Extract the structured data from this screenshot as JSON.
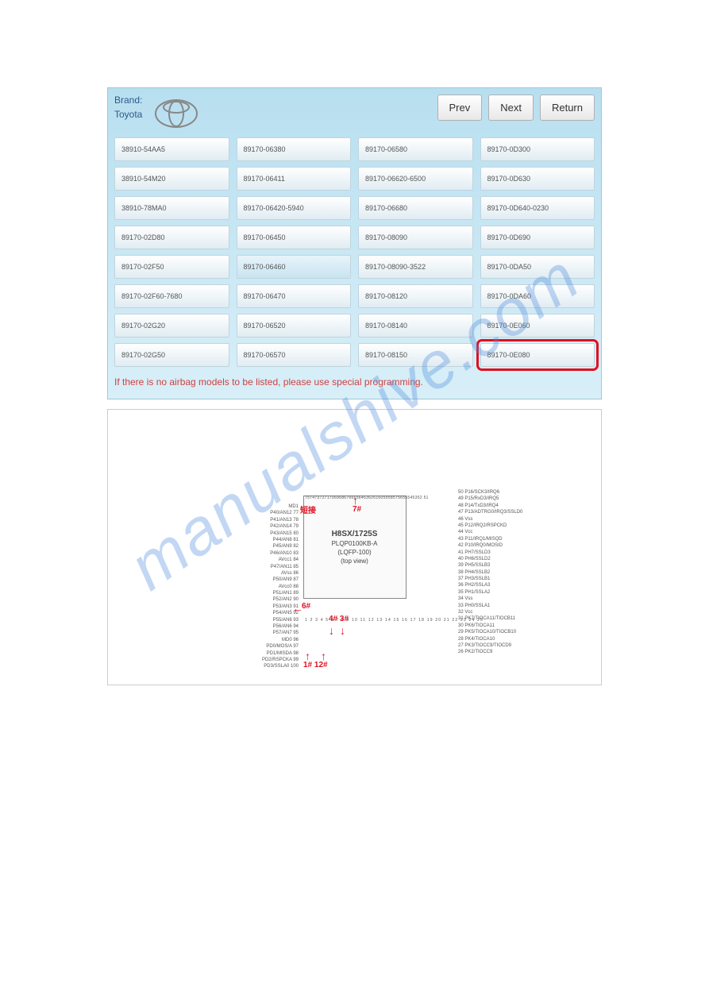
{
  "header": {
    "brand_label": "Brand:",
    "brand_name": "Toyota",
    "prev": "Prev",
    "next": "Next",
    "return": "Return"
  },
  "grid": {
    "cells": [
      "38910-54AA5",
      "89170-06380",
      "89170-06580",
      "89170-0D300",
      "38910-54M20",
      "89170-06411",
      "89170-06620-6500",
      "89170-0D630",
      "38910-78MA0",
      "89170-06420-5940",
      "89170-06680",
      "89170-0D640-0230",
      "89170-02D80",
      "89170-06450",
      "89170-08090",
      "89170-0D690",
      "89170-02F50",
      "89170-06460",
      "89170-08090-3522",
      "89170-0DA50",
      "89170-02F60-7680",
      "89170-06470",
      "89170-08120",
      "89170-0DA60",
      "89170-02G20",
      "89170-06520",
      "89170-08140",
      "89170-0E060",
      "89170-02G50",
      "89170-06570",
      "89170-08150",
      "89170-0E080"
    ],
    "highlighted_index": 17,
    "red_boxed_index": 31
  },
  "footer_note": "If there is no airbag models to be listed, please use special programming.",
  "chip": {
    "title": "H8SX/1725S",
    "subtitle1": "PLQP0100KB-A",
    "subtitle2": "(LQFP-100)",
    "subtitle3": "(top view)",
    "left_pins": [
      "MD1",
      "P40/AN12 77",
      "P41/AN13 78",
      "P42/AN14 79",
      "P43/AN15 80",
      "P44/AN8 81",
      "P45/AN9 82",
      "P46/AN10 83",
      "AVcc1 84",
      "P47/AN11 85",
      "AVss 86",
      "P50/AN9 87",
      "AVcc0 88",
      "P51/AN1 89",
      "P52/AN2 90",
      "P53/AN3 91",
      "P54/AN5 92",
      "P55/AN6 93",
      "P56/AN6 94",
      "P57/AN7 95",
      "MD0 96",
      "PD0/MOS/A 97",
      "PD1/MISDA 98",
      "PD2/RSPCKA 99",
      "PD3/SSLA0 100"
    ],
    "right_pins": [
      "50 P16/SCK3/IRQ6",
      "49 P15/RxD3/IRQ5",
      "48 P14/TxD3/IRQ4",
      "47 P13/ADTRG0/IRQ3/SSLD0",
      "46 Vss",
      "45 P12/IRQ2/RSPCKD",
      "44 Vcc",
      "43 P11/IRQ1/MISQD",
      "42 P10/IRQ0/MOSID",
      "41 PH7/SSLD3",
      "40 PH6/SSLD2",
      "39 PH5/SSLB3",
      "38 PH4/SSLB2",
      "37 PH3/SSLB1",
      "36 PH2/SSLA3",
      "35 PH1/SSLA2",
      "34 Vss",
      "33 PH0/SSLA1",
      "32 Vcc",
      "31 PK7/TIOCA11/TIOCB11",
      "30 PK6/TIOCA11",
      "29 PK5/TIOCA10/TIOCB10",
      "28 PK4/TIOCA10",
      "27 PK3/TIOCC9/TIOCD9",
      "26 PK2/TIOCC9"
    ],
    "top_pin_nums": "757473727170696867666564636261605958575655545352 51",
    "bottom_pin_nums": "1 2 3 4 5 6 7 8 9 10 11 12 13 14 15 16 17 18 19 20 21 22 23 24 25",
    "red_annotations": {
      "shortcut": "短接",
      "mark_7": "7#",
      "mark_6": "6#",
      "mark_43": "4# 3#",
      "mark_1_12": "1# 12#"
    }
  },
  "watermark": "manualshive.com",
  "colors": {
    "panel_bg_top": "#b8dff0",
    "panel_bg_bottom": "#d8eff8",
    "cell_bg_top": "#ffffff",
    "cell_bg_bottom": "#e0ecf2",
    "red_box": "#e01020",
    "footer_red": "#d04040",
    "brand_text": "#2a5a8a",
    "watermark_color": "rgba(80,140,220,0.35)"
  }
}
